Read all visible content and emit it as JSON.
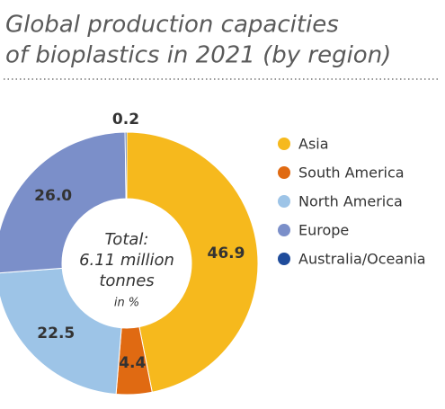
{
  "chart_data": {
    "type": "donut",
    "title": [
      "Global production capacities",
      "of bioplastics in 2021 (by region)"
    ],
    "center_text": [
      "Total:",
      "6.11 million",
      "tonnes",
      "in %"
    ],
    "categories": [
      "Asia",
      "South America",
      "North America",
      "Europe",
      "Australia/Oceania"
    ],
    "values": [
      46.9,
      4.4,
      22.5,
      26,
      0.2
    ],
    "value_labels": [
      "46.9",
      "4.4",
      "22.5",
      "26.0",
      "0.2"
    ],
    "colors": [
      "#f6b91d",
      "#e06a12",
      "#9dc4e7",
      "#7b8fc9",
      "#1f4c9b"
    ],
    "legend": "right"
  }
}
